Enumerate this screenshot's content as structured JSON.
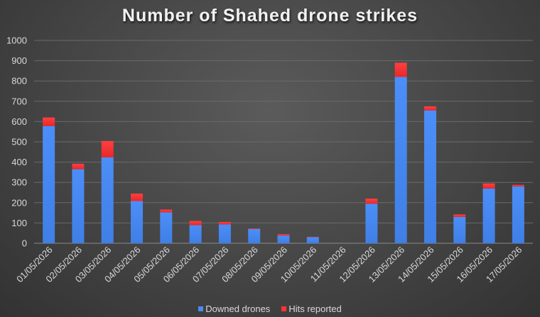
{
  "chart_data": {
    "type": "bar",
    "stacked": true,
    "title": "Number of Shahed drone strikes",
    "categories": [
      "01/05/2026",
      "02/05/2026",
      "03/05/2026",
      "04/05/2026",
      "05/05/2026",
      "06/05/2026",
      "07/05/2026",
      "08/05/2026",
      "09/05/2026",
      "10/05/2026",
      "11/05/2026",
      "12/05/2026",
      "13/05/2026",
      "14/05/2026",
      "15/05/2026",
      "16/05/2026",
      "17/05/2026"
    ],
    "series": [
      {
        "name": "Downed drones",
        "color": "#4a8af4",
        "values": [
          578,
          365,
          424,
          208,
          152,
          89,
          93,
          70,
          38,
          30,
          0,
          195,
          820,
          655,
          130,
          270,
          280
        ]
      },
      {
        "name": "Hits reported",
        "color": "#ff3434",
        "values": [
          42,
          27,
          80,
          37,
          14,
          21,
          12,
          3,
          7,
          2,
          0,
          25,
          70,
          20,
          12,
          25,
          8
        ]
      }
    ],
    "xlabel": "",
    "ylabel": "",
    "ylim": [
      0,
      1000
    ],
    "yticks": [
      0,
      100,
      200,
      300,
      400,
      500,
      600,
      700,
      800,
      900,
      1000
    ],
    "grid": true,
    "legend": "bottom"
  }
}
